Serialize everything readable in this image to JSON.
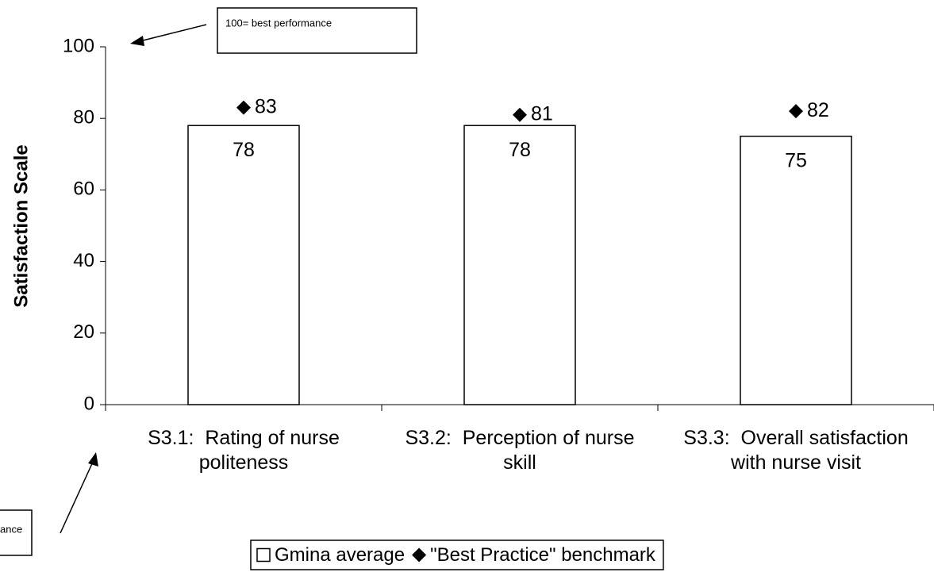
{
  "chart_data": {
    "type": "bar",
    "y_label": "Satisfaction Scale",
    "categories": [
      "S3.1:  Rating of nurse politeness",
      "S3.2:  Perception of nurse skill",
      "S3.3:  Overall satisfaction with nurse visit"
    ],
    "series": [
      {
        "name": "Gmina average",
        "color": "#ffffff",
        "values": [
          78,
          78,
          75
        ]
      },
      {
        "name": "\"Best Practice\" benchmark",
        "color": "#000000",
        "marker": "diamond",
        "values": [
          83,
          81,
          82
        ]
      }
    ],
    "ylim": [
      0,
      100
    ],
    "yticks": [
      0,
      20,
      40,
      60,
      80,
      100
    ],
    "annotations": [
      "100= best performance",
      "ance"
    ],
    "legend": "bottom"
  }
}
